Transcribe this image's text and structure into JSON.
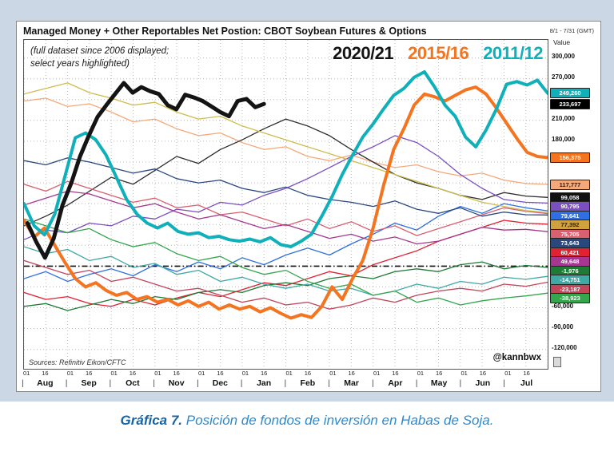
{
  "header": {
    "title": "Managed Money + Other Reportables Net Postion: CBOT Soybean Futures & Options",
    "date_range": "8/1 - 7/31 (GMT)"
  },
  "page": {
    "caption": {
      "label": "Gráfica 7.",
      "text": "Posición de fondos de inversión en Habas de Soja.",
      "label_color": "#1664a8",
      "text_color": "#2e89cc"
    }
  },
  "chart_data": {
    "type": "line",
    "title": "Managed Money + Other Reportables Net Postion: CBOT Soybean Futures & Options",
    "annotation_lines": [
      "(full dataset since 2006 displayed;",
      "select years highlighted)"
    ],
    "sources": "Sources: Refinitiv Eikon/CFTC",
    "watermark": "@kannbwx",
    "value_axis_label": "Value",
    "value_units": "contracts",
    "series_values_unit": 1000,
    "ylim": [
      -148000,
      326000
    ],
    "grid": "dotted",
    "zero_line": 0,
    "x_months": [
      "Aug",
      "Sep",
      "Oct",
      "Nov",
      "Dec",
      "Jan",
      "Feb",
      "Mar",
      "Apr",
      "May",
      "Jun",
      "Jul"
    ],
    "x_tick_labels": [
      "01",
      "16"
    ],
    "y_ticks": [
      {
        "label": "300,000",
        "value": 300000
      },
      {
        "label": "270,000",
        "value": 270000
      },
      {
        "label": "210,000",
        "value": 210000
      },
      {
        "label": "180,000",
        "value": 180000
      },
      {
        "label": "-60,000",
        "value": -60000
      },
      {
        "label": "-90,000",
        "value": -90000
      },
      {
        "label": "-120,000",
        "value": -120000
      }
    ],
    "legend": [
      {
        "label": "2020/21",
        "color": "#141414"
      },
      {
        "label": "2015/16",
        "color": "#F4741F"
      },
      {
        "label": "2011/12",
        "color": "#0FB0BA"
      }
    ],
    "highlighted_series": [
      {
        "name": "2015/16",
        "color": "#F4741F",
        "width": 4,
        "badge": {
          "label": "156,375",
          "value": 156375,
          "bg": "#F4741F",
          "fg": "#ffffff"
        },
        "values_k": [
          66,
          42,
          55,
          30,
          5,
          -18,
          -30,
          -24,
          -35,
          -42,
          -38,
          -48,
          -44,
          -52,
          -48,
          -56,
          -50,
          -58,
          -52,
          -62,
          -56,
          -62,
          -58,
          -66,
          -60,
          -68,
          -75,
          -70,
          -74,
          -58,
          -30,
          -48,
          -18,
          8,
          55,
          115,
          168,
          198,
          232,
          248,
          244,
          238,
          246,
          254,
          258,
          248,
          228,
          206,
          184,
          164,
          158,
          156.375
        ]
      },
      {
        "name": "2011/12",
        "color": "#0FB0BA",
        "width": 4,
        "badge": {
          "label": "249,260",
          "value": 249260,
          "bg": "#0FB0BA",
          "fg": "#ffffff"
        },
        "values_k": [
          90,
          58,
          45,
          75,
          130,
          185,
          192,
          182,
          160,
          128,
          96,
          75,
          62,
          55,
          62,
          50,
          46,
          48,
          41,
          43,
          38,
          36,
          39,
          35,
          41,
          31,
          28,
          36,
          46,
          72,
          100,
          132,
          160,
          186,
          205,
          226,
          246,
          256,
          272,
          280,
          258,
          232,
          216,
          186,
          172,
          196,
          226,
          262,
          266,
          261,
          268,
          249.26
        ]
      },
      {
        "name": "2020/21",
        "color": "#141414",
        "width": 5,
        "start_month": 0.08,
        "end_month": 5.5,
        "badge": {
          "label": "233,697",
          "value": 233697,
          "bg": "#000000",
          "fg": "#ffffff"
        },
        "values_k": [
          62,
          35,
          12,
          40,
          88,
          120,
          158,
          188,
          215,
          232,
          248,
          264,
          250,
          258,
          252,
          248,
          232,
          226,
          247,
          243,
          238,
          230,
          222,
          216,
          238,
          241,
          229,
          233.697
        ]
      }
    ],
    "background_series": [
      {
        "name": "other-season-1",
        "color": "#F5A97A",
        "badge": {
          "label": "117,777",
          "value": 117777,
          "bg": "#F5A97A",
          "fg": "#222222"
        },
        "values_k": [
          238,
          242,
          230,
          234,
          222,
          208,
          212,
          198,
          188,
          192,
          178,
          168,
          172,
          158,
          152,
          160,
          150,
          142,
          146,
          136,
          130,
          134,
          124,
          119,
          117.777
        ]
      },
      {
        "name": "other-season-2",
        "color": "#2E2E2E",
        "badge": {
          "label": "99,058",
          "value": 99058,
          "bg": "#111111",
          "fg": "#ffffff"
        },
        "values_k": [
          58,
          72,
          88,
          108,
          128,
          118,
          138,
          158,
          148,
          168,
          182,
          198,
          212,
          202,
          188,
          168,
          150,
          132,
          120,
          112,
          102,
          96,
          106,
          101,
          99.058
        ]
      },
      {
        "name": "other-season-3",
        "color": "#7A4FC0",
        "badge": {
          "label": "90,795",
          "value": 90795,
          "bg": "#7A4FC0",
          "fg": "#ffffff"
        },
        "values_k": [
          38,
          52,
          48,
          62,
          58,
          72,
          68,
          82,
          78,
          92,
          88,
          102,
          112,
          126,
          142,
          158,
          172,
          188,
          178,
          158,
          132,
          112,
          96,
          92,
          90.795
        ]
      },
      {
        "name": "other-season-4",
        "color": "#2F6FE4",
        "badge": {
          "label": "79,641",
          "value": 79641,
          "bg": "#2F6FE4",
          "fg": "#ffffff"
        },
        "values_k": [
          -18,
          -8,
          -22,
          -12,
          -4,
          -14,
          2,
          -8,
          6,
          -4,
          12,
          2,
          16,
          26,
          16,
          32,
          46,
          62,
          52,
          72,
          86,
          76,
          90,
          84,
          79.641
        ]
      },
      {
        "name": "other-season-5",
        "color": "#D96070",
        "badge": {
          "label": "75,705",
          "value": 75705,
          "bg": "#D96070",
          "fg": "#ffffff"
        },
        "values_k": [
          118,
          108,
          122,
          112,
          102,
          92,
          98,
          84,
          88,
          74,
          78,
          68,
          58,
          68,
          54,
          64,
          50,
          58,
          44,
          54,
          64,
          74,
          84,
          79,
          75.705
        ]
      },
      {
        "name": "other-season-6",
        "color": "#2A477E",
        "badge": {
          "label": "73,643",
          "value": 73643,
          "bg": "#2A477E",
          "fg": "#ffffff"
        },
        "values_k": [
          152,
          146,
          156,
          150,
          142,
          134,
          140,
          126,
          120,
          124,
          112,
          106,
          114,
          102,
          96,
          92,
          86,
          94,
          82,
          76,
          84,
          72,
          78,
          74,
          73.643
        ]
      },
      {
        "name": "other-season-7",
        "color": "#CDBD4E",
        "badge": {
          "label": "77,392",
          "value": 77392,
          "bg": "#D0A23F",
          "fg": "#222222"
        },
        "values_k": [
          248,
          256,
          264,
          250,
          242,
          232,
          236,
          222,
          212,
          216,
          202,
          192,
          182,
          172,
          162,
          152,
          142,
          132,
          122,
          112,
          102,
          92,
          86,
          80,
          77.392
        ]
      },
      {
        "name": "other-season-8",
        "color": "#E02233",
        "badge": {
          "label": "60,421",
          "value": 60421,
          "bg": "#E02233",
          "fg": "#ffffff"
        },
        "values_k": [
          -38,
          -48,
          -44,
          -54,
          -58,
          -48,
          -56,
          -46,
          -38,
          -44,
          -34,
          -24,
          -28,
          -18,
          -8,
          -14,
          2,
          12,
          22,
          36,
          46,
          56,
          66,
          62,
          60.421
        ]
      },
      {
        "name": "other-season-9",
        "color": "#A63790",
        "badge": {
          "label": "49,648",
          "value": 49648,
          "bg": "#A63790",
          "fg": "#ffffff"
        },
        "values_k": [
          88,
          98,
          108,
          104,
          94,
          84,
          90,
          78,
          68,
          74,
          64,
          54,
          60,
          50,
          40,
          46,
          36,
          42,
          32,
          36,
          46,
          56,
          52,
          53,
          49.648
        ]
      },
      {
        "name": "other-season-10",
        "color": "#1E7A34",
        "badge": {
          "label": "-1,976",
          "value": -1976,
          "bg": "#1E7A34",
          "fg": "#ffffff"
        },
        "values_k": [
          -58,
          -54,
          -64,
          -56,
          -48,
          -54,
          -44,
          -48,
          -38,
          -34,
          -38,
          -28,
          -24,
          -28,
          -18,
          -14,
          -18,
          -8,
          -4,
          -8,
          2,
          6,
          -4,
          1,
          -1.976
        ]
      },
      {
        "name": "other-season-11",
        "color": "#3FA9A4",
        "badge": {
          "label": "-14,751",
          "value": -14751,
          "bg": "#3FA9A4",
          "fg": "#ffffff"
        },
        "values_k": [
          28,
          18,
          24,
          8,
          14,
          -2,
          4,
          -12,
          -6,
          -22,
          -16,
          -26,
          -32,
          -26,
          -36,
          -32,
          -42,
          -36,
          -26,
          -32,
          -22,
          -26,
          -16,
          -19,
          -14.751
        ]
      },
      {
        "name": "other-season-12",
        "color": "#C2455A",
        "badge": {
          "label": "-23,187",
          "value": -23187,
          "bg": "#C2455A",
          "fg": "#ffffff"
        },
        "values_k": [
          8,
          -2,
          -12,
          -6,
          -22,
          -16,
          -26,
          -36,
          -32,
          -42,
          -52,
          -46,
          -56,
          -52,
          -62,
          -56,
          -46,
          -52,
          -42,
          -36,
          -32,
          -36,
          -26,
          -29,
          -23.187
        ]
      },
      {
        "name": "other-season-13",
        "color": "#34A64D",
        "badge": {
          "label": "-38,923",
          "value": -38923,
          "bg": "#34A64D",
          "fg": "#ffffff"
        },
        "values_k": [
          68,
          58,
          48,
          54,
          38,
          28,
          34,
          18,
          8,
          14,
          -2,
          -12,
          -6,
          -22,
          -32,
          -26,
          -42,
          -36,
          -52,
          -46,
          -56,
          -50,
          -46,
          -43,
          -38.923
        ]
      }
    ]
  }
}
